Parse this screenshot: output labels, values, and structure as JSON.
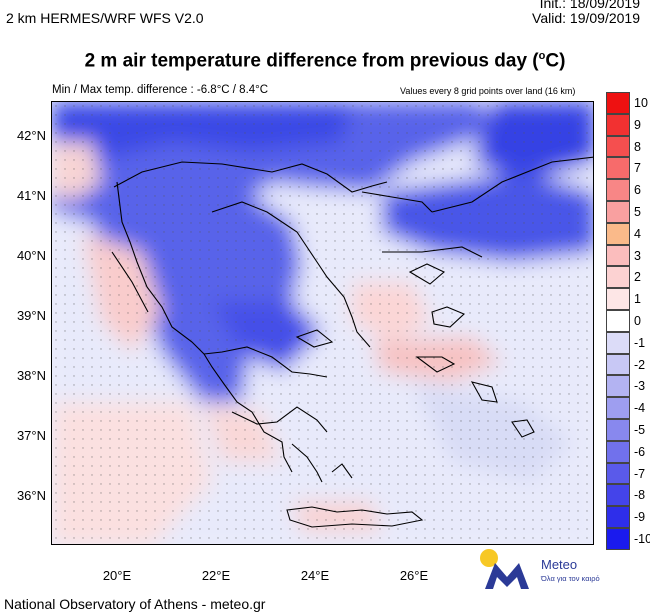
{
  "header": {
    "model": "2 km HERMES/WRF WFS V2.0",
    "init": "Init.:  18/09/2019",
    "valid": "Valid: 19/09/2019"
  },
  "title": "2 m air temperature difference from previous day (",
  "title_unit": "o",
  "title_end": "C)",
  "subtitle_left": "Min / Max temp. difference : -6.8°C / 8.4°C",
  "subtitle_right": "Values every 8 grid points over land (16 km)",
  "map": {
    "lat_labels": [
      "42°N",
      "41°N",
      "40°N",
      "39°N",
      "38°N",
      "37°N",
      "36°N"
    ],
    "lon_labels": [
      "20°E",
      "22°E",
      "24°E",
      "26°E"
    ]
  },
  "colorbar": {
    "labels": [
      "10",
      "9",
      "8",
      "7",
      "6",
      "5",
      "4",
      "3",
      "2",
      "1",
      "0",
      "-1",
      "-2",
      "-3",
      "-4",
      "-5",
      "-6",
      "-7",
      "-8",
      "-9",
      "-10"
    ],
    "colors": [
      "#ee1111",
      "#f23131",
      "#f54f4f",
      "#f76b6b",
      "#f88686",
      "#f9a0a0",
      "#faba8a",
      "#fbbdbd",
      "#fcd2d2",
      "#fde6e6",
      "#ffffff",
      "#dcdcf8",
      "#c8c8f5",
      "#b3b3f2",
      "#9e9ef0",
      "#8888ee",
      "#7171ec",
      "#5a5aea",
      "#4444ea",
      "#2e2eea",
      "#1a1aee"
    ]
  },
  "footer": "National Observatory of Athens - meteo.gr",
  "logo": {
    "name": "Meteo",
    "tagline": "Όλα για τον καιρό"
  }
}
